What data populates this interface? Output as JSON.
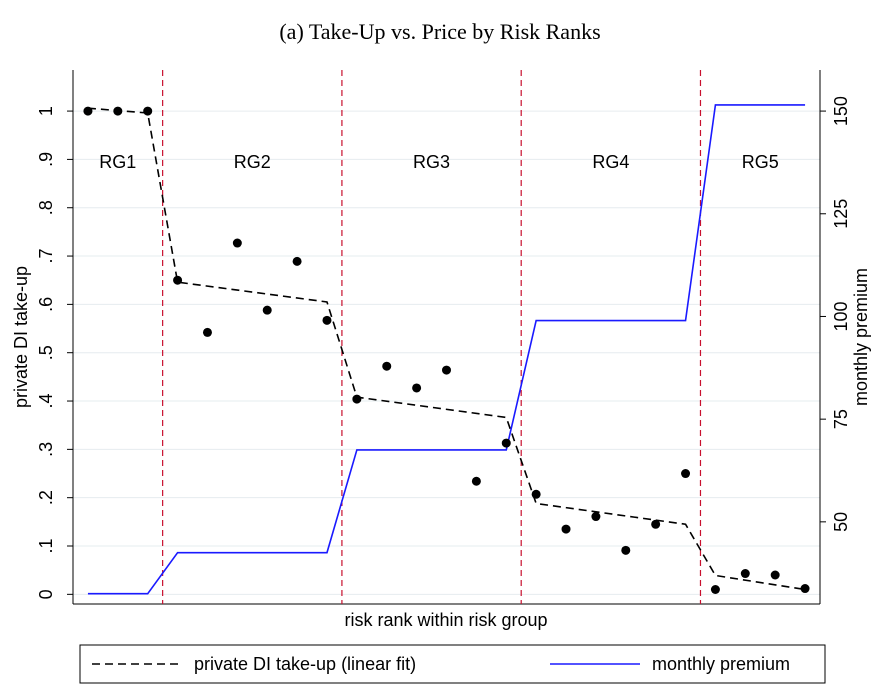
{
  "chart_data": {
    "type": "line",
    "title": "(a) Take-Up vs. Price by Risk Ranks",
    "xlabel": "risk rank within risk group",
    "ylabel": "private DI take-up",
    "y2label": "monthly premium",
    "xlim": [
      0.5,
      25.5
    ],
    "ylim": [
      -0.02,
      1.085
    ],
    "yticks": [
      0,
      {
        "value": 0.1,
        "label": ".1"
      },
      {
        "value": 0.2,
        "label": ".2"
      },
      {
        "value": 0.3,
        "label": ".3"
      },
      {
        "value": 0.4,
        "label": ".4"
      },
      {
        "value": 0.5,
        "label": ".5"
      },
      {
        "value": 0.6,
        "label": ".6"
      },
      {
        "value": 0.7,
        "label": ".7"
      },
      {
        "value": 0.8,
        "label": ".8"
      },
      {
        "value": 0.9,
        "label": ".9"
      },
      1
    ],
    "y2lim": [
      30,
      160
    ],
    "y2ticks": [
      50,
      75,
      100,
      125,
      150
    ],
    "grid": true,
    "vlines": [
      3.5,
      9.5,
      15.5,
      21.5
    ],
    "vline_color": "#c8102e",
    "groups": [
      "RG1",
      "RG2",
      "RG3",
      "RG4",
      "RG5"
    ],
    "points": {
      "color": "#000000",
      "x": [
        1,
        2,
        3,
        4,
        5,
        6,
        7,
        8,
        9,
        10,
        11,
        12,
        13,
        14,
        15,
        16,
        17,
        18,
        19,
        20,
        21,
        22,
        23,
        24,
        25
      ],
      "values": [
        1.0,
        1.0,
        1.0,
        0.65,
        0.542,
        0.727,
        0.588,
        0.689,
        0.567,
        0.404,
        0.472,
        0.427,
        0.464,
        0.234,
        0.313,
        0.207,
        0.135,
        0.161,
        0.091,
        0.145,
        0.25,
        0.01,
        0.043,
        0.04,
        0.012
      ]
    },
    "series": [
      {
        "name": "private DI take-up (linear fit)",
        "color": "#000000",
        "dash": true,
        "x": [
          1,
          3,
          4,
          9,
          10,
          15,
          16,
          21,
          22,
          25
        ],
        "values": [
          1.006,
          0.996,
          0.646,
          0.605,
          0.408,
          0.366,
          0.188,
          0.145,
          0.039,
          0.01
        ]
      },
      {
        "name": "monthly premium",
        "color": "#1a1aff",
        "axis": "y2",
        "x": [
          1,
          3,
          4,
          9,
          10,
          15,
          16,
          21,
          22,
          25
        ],
        "values": [
          32.5,
          32.5,
          42.5,
          42.5,
          67.5,
          67.5,
          99,
          99,
          151.5,
          151.5
        ]
      }
    ]
  }
}
